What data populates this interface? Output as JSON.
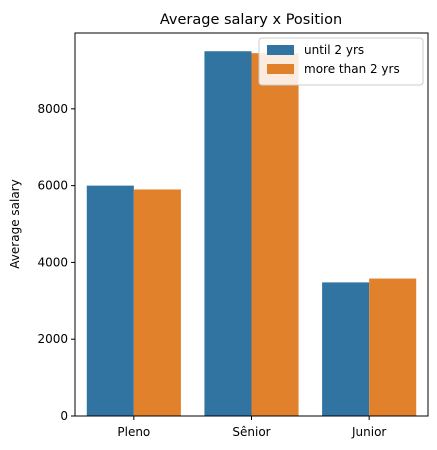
{
  "chart_data": {
    "type": "bar",
    "title": "Average salary x Position",
    "xlabel": "",
    "ylabel": "Average salary",
    "categories": [
      "Pleno",
      "Sênior",
      "Junior"
    ],
    "series": [
      {
        "name": "until 2 yrs",
        "values": [
          6000,
          9500,
          3480
        ]
      },
      {
        "name": "more than 2 yrs",
        "values": [
          5900,
          9450,
          3580
        ]
      }
    ],
    "ylim": [
      0,
      9975
    ],
    "yticks": [
      0,
      2000,
      4000,
      6000,
      8000
    ],
    "grid": false,
    "legend_position": "top-right",
    "colors": {
      "until 2 yrs": "#3274a1",
      "more than 2 yrs": "#e1812c"
    }
  }
}
